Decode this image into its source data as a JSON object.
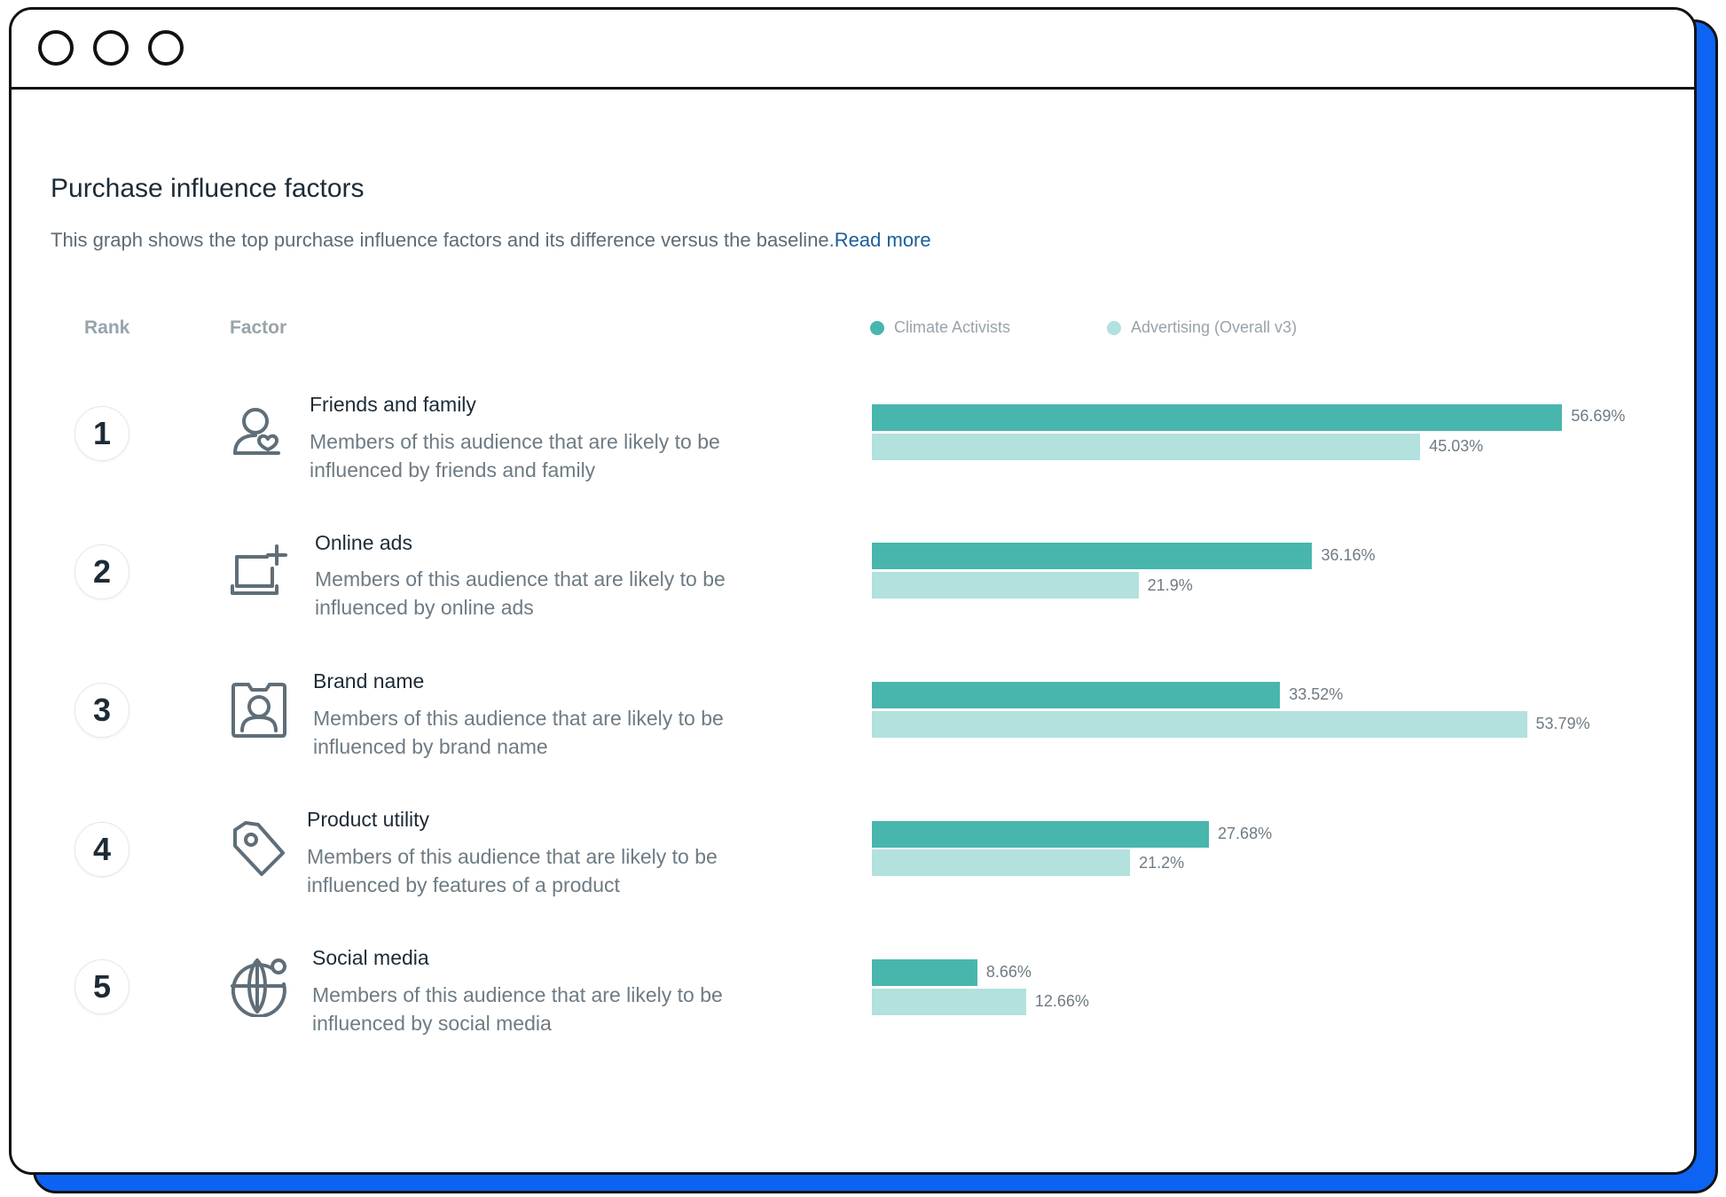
{
  "window": {
    "controls": [
      "close",
      "minimize",
      "maximize"
    ]
  },
  "header": {
    "title": "Purchase influence factors",
    "subtitle": "This graph shows the top purchase influence factors and its difference versus the baseline.",
    "read_more": "Read more"
  },
  "columns": {
    "rank": "Rank",
    "factor": "Factor"
  },
  "legend": {
    "primary": {
      "label": "Climate Activists",
      "color": "#49b6ad"
    },
    "baseline": {
      "label": "Advertising (Overall v3)",
      "color": "#b2e1de"
    }
  },
  "factors": [
    {
      "rank": "1",
      "icon": "person-heart-icon",
      "title": "Friends and family",
      "desc": "Members of this audience that are likely to be influenced by friends and family",
      "primary_label": "56.69%",
      "baseline_label": "45.03%"
    },
    {
      "rank": "2",
      "icon": "laptop-plus-icon",
      "title": "Online ads",
      "desc": "Members of this audience that are likely to be influenced by online ads",
      "primary_label": "36.16%",
      "baseline_label": "21.9%"
    },
    {
      "rank": "3",
      "icon": "badge-person-icon",
      "title": "Brand name",
      "desc": "Members of this audience that are likely to be influenced by brand name",
      "primary_label": "33.52%",
      "baseline_label": "53.79%"
    },
    {
      "rank": "4",
      "icon": "price-tag-icon",
      "title": "Product utility",
      "desc": "Members of this audience that are likely to be influenced by features of a product",
      "primary_label": "27.68%",
      "baseline_label": "21.2%"
    },
    {
      "rank": "5",
      "icon": "globe-icon",
      "title": "Social media",
      "desc": "Members of this audience that are likely to be influenced by social media",
      "primary_label": "8.66%",
      "baseline_label": "12.66%"
    }
  ],
  "chart_data": {
    "type": "bar",
    "orientation": "horizontal",
    "categories": [
      "Friends and family",
      "Online ads",
      "Brand name",
      "Product utility",
      "Social media"
    ],
    "series": [
      {
        "name": "Climate Activists",
        "values": [
          56.69,
          36.16,
          33.52,
          27.68,
          8.66
        ]
      },
      {
        "name": "Advertising (Overall v3)",
        "values": [
          45.03,
          21.9,
          53.79,
          21.2,
          12.66
        ]
      }
    ],
    "xlim": [
      0,
      60
    ],
    "legend": "top",
    "grid": false
  }
}
